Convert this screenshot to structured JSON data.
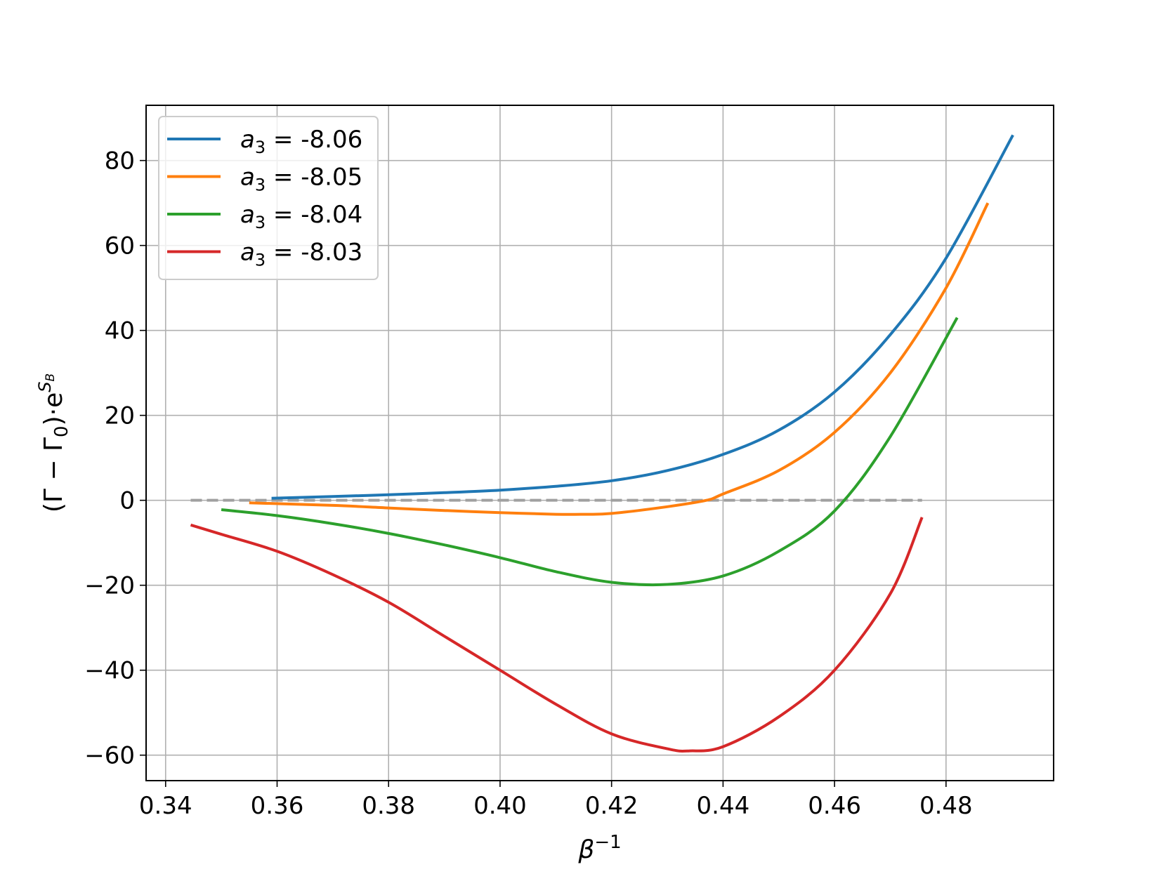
{
  "chart_data": {
    "type": "line",
    "xlabel": "β",
    "xlabel_sup": "−1",
    "ylabel_main": "(Γ − Γ",
    "ylabel_sub": "0",
    "ylabel_rest": ")·e",
    "ylabel_sup": "S",
    "ylabel_supsub": "B",
    "xlim": [
      0.3365,
      0.4993
    ],
    "ylim": [
      -66,
      93
    ],
    "xticks": [
      0.34,
      0.36,
      0.38,
      0.4,
      0.42,
      0.44,
      0.46,
      0.48
    ],
    "xtick_labels": [
      "0.34",
      "0.36",
      "0.38",
      "0.40",
      "0.42",
      "0.44",
      "0.46",
      "0.48"
    ],
    "yticks": [
      -60,
      -40,
      -20,
      0,
      20,
      40,
      60,
      80
    ],
    "ytick_labels": [
      "−60",
      "−40",
      "−20",
      "0",
      "20",
      "40",
      "60",
      "80"
    ],
    "grid": true,
    "legend_position": "top-left",
    "reference_line": {
      "y": 0,
      "x": [
        0.3445,
        0.4757
      ],
      "color": "#a0a0a0",
      "style": "dashed"
    },
    "series": [
      {
        "name": "-8.06",
        "legend_prefix": "a",
        "legend_sub": "3",
        "legend_eq": " = ",
        "color": "#1f77b4",
        "x": [
          0.359,
          0.37,
          0.38,
          0.39,
          0.4,
          0.41,
          0.42,
          0.43,
          0.44,
          0.45,
          0.46,
          0.47,
          0.48,
          0.492
        ],
        "y": [
          0.5,
          0.9,
          1.3,
          1.8,
          2.4,
          3.3,
          4.6,
          7.0,
          10.8,
          16.5,
          25.5,
          39.0,
          57.0,
          86.0
        ]
      },
      {
        "name": "-8.05",
        "legend_prefix": "a",
        "legend_sub": "3",
        "legend_eq": " = ",
        "color": "#ff7f0e",
        "x": [
          0.355,
          0.37,
          0.38,
          0.39,
          0.4,
          0.41,
          0.415,
          0.42,
          0.43,
          0.437,
          0.44,
          0.45,
          0.46,
          0.47,
          0.48,
          0.4875
        ],
        "y": [
          -0.6,
          -1.2,
          -1.8,
          -2.4,
          -2.9,
          -3.3,
          -3.3,
          -3.1,
          -1.5,
          0.0,
          1.5,
          7.0,
          16.0,
          30.0,
          50.0,
          70.0
        ]
      },
      {
        "name": "-8.04",
        "legend_prefix": "a",
        "legend_sub": "3",
        "legend_eq": " = ",
        "color": "#2ca02c",
        "x": [
          0.35,
          0.36,
          0.37,
          0.38,
          0.39,
          0.4,
          0.41,
          0.42,
          0.43,
          0.44,
          0.45,
          0.46,
          0.47,
          0.482
        ],
        "y": [
          -2.2,
          -3.6,
          -5.5,
          -7.8,
          -10.5,
          -13.5,
          -16.8,
          -19.3,
          -19.8,
          -17.8,
          -12.0,
          -2.5,
          15.0,
          43.0
        ]
      },
      {
        "name": "-8.03",
        "legend_prefix": "a",
        "legend_sub": "3",
        "legend_eq": " = ",
        "color": "#d62728",
        "x": [
          0.3445,
          0.35,
          0.36,
          0.37,
          0.38,
          0.39,
          0.4,
          0.41,
          0.42,
          0.43,
          0.434,
          0.44,
          0.45,
          0.46,
          0.47,
          0.4757
        ],
        "y": [
          -5.8,
          -8.0,
          -12.0,
          -17.5,
          -24.0,
          -32.0,
          -40.0,
          -48.0,
          -55.0,
          -58.5,
          -59.0,
          -58.0,
          -51.0,
          -40.0,
          -22.0,
          -4.0
        ]
      }
    ]
  }
}
